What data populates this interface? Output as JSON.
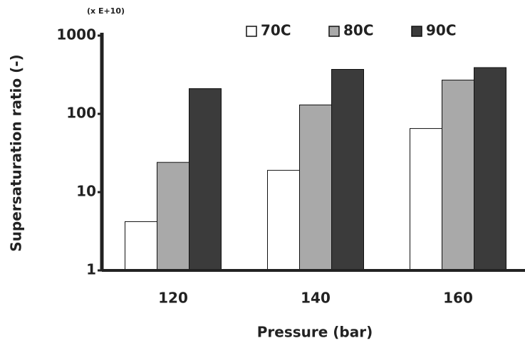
{
  "chart_data": {
    "type": "bar",
    "annotation": "(x E+10)",
    "x_label": "Pressure (bar)",
    "y_label": "Supersaturation ratio (-)",
    "categories": [
      "120",
      "140",
      "160"
    ],
    "series": [
      {
        "name": "70C",
        "color": "#ffffff",
        "values": [
          4.2,
          19,
          65
        ]
      },
      {
        "name": "80C",
        "color": "#a9a9a9",
        "values": [
          24,
          130,
          270
        ]
      },
      {
        "name": "90C",
        "color": "#3b3b3b",
        "values": [
          210,
          370,
          390
        ]
      }
    ],
    "ylim": [
      1,
      1000
    ],
    "yticks": [
      1,
      10,
      100,
      1000
    ],
    "log_scale": true,
    "legend": "top"
  }
}
